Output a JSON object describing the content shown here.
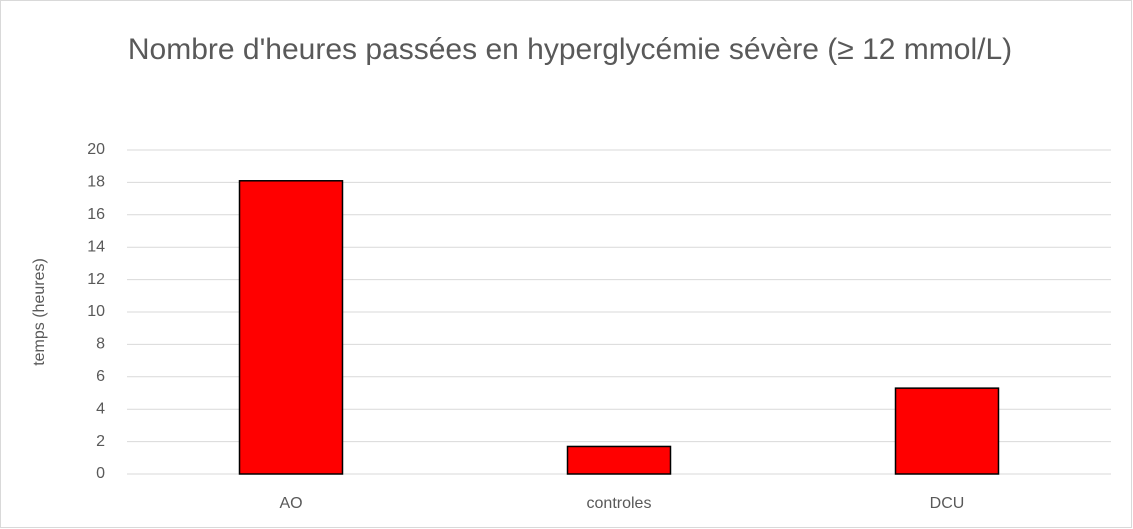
{
  "chart_data": {
    "type": "bar",
    "title": "Nombre d'heures passées en hyperglycémie sévère  (≥ 12 mmol/L)",
    "ylabel": "temps (heures)",
    "categories": [
      "AO",
      "controles",
      "DCU"
    ],
    "values": [
      18.1,
      1.7,
      5.3
    ],
    "color": "#ff0000",
    "ylim": [
      0,
      20
    ],
    "yticks": [
      0,
      2,
      4,
      6,
      8,
      10,
      12,
      14,
      16,
      18,
      20
    ],
    "grid": true
  }
}
